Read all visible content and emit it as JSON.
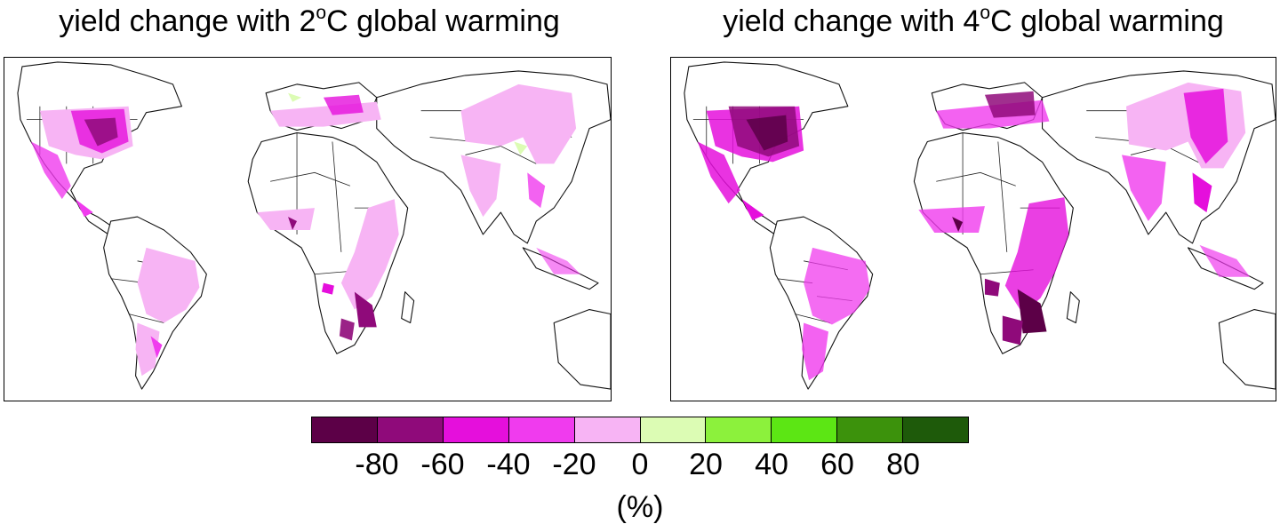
{
  "panels": [
    {
      "title_prefix": "yield change with 2",
      "title_sup": "o",
      "title_suffix": "C global warming",
      "warming": "2"
    },
    {
      "title_prefix": "yield change with 4",
      "title_sup": "o",
      "title_suffix": "C global warming",
      "warming": "4"
    }
  ],
  "colorbar": {
    "colors": [
      "#5c0047",
      "#8f0a7a",
      "#e50fdc",
      "#f03bee",
      "#f7b4f4",
      "#dcfcb4",
      "#8cf13c",
      "#5ce614",
      "#3c920c",
      "#1e5a0a"
    ],
    "ticks": [
      "-80",
      "-60",
      "-40",
      "-20",
      "0",
      "20",
      "40",
      "60",
      "80"
    ],
    "unit": "(%)"
  },
  "legend_scale": {
    "min": -100,
    "max": 100,
    "step": 20
  },
  "map_colors": {
    "land": "#ffffff",
    "outline": "#111111"
  }
}
